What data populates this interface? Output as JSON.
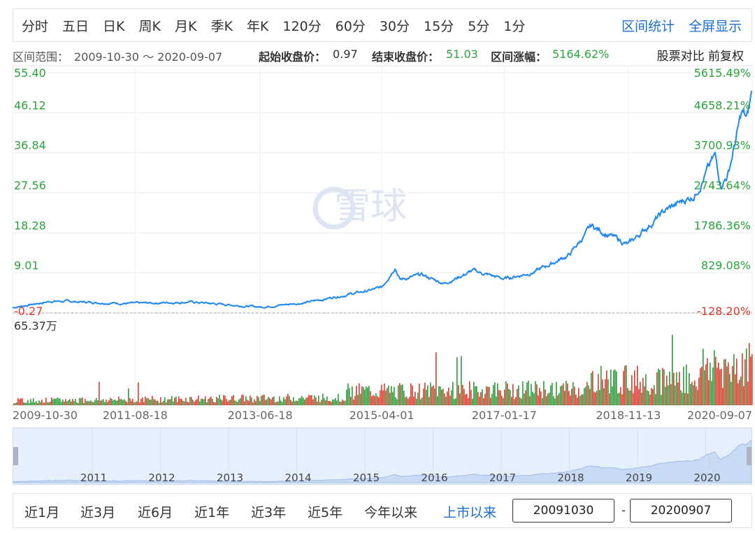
{
  "periods": [
    "分时",
    "五日",
    "日K",
    "周K",
    "月K",
    "季K",
    "年K",
    "120分",
    "60分",
    "30分",
    "15分",
    "5分",
    "1分"
  ],
  "top_actions": [
    "区间统计",
    "全屏显示"
  ],
  "info": {
    "range_label": "区间范围：",
    "range_value": "2009-10-30 ～ 2020-09-07",
    "start_label": "起始收盘价：",
    "start_value": "0.97",
    "end_label": "结束收盘价：",
    "end_value": "51.03",
    "change_label": "区间涨幅：",
    "change_value": "5164.62%",
    "right_links": "股票对比 前复权"
  },
  "watermark": "雪球",
  "chart_data": {
    "type": "line",
    "price_axis": [
      "55.40",
      "46.12",
      "36.84",
      "27.56",
      "18.28",
      "9.01",
      "-0.27"
    ],
    "pct_axis": [
      "5615.49%",
      "4658.21%",
      "3700.93%",
      "2743.64%",
      "1786.36%",
      "829.08%",
      "-128.20%"
    ],
    "ylim": [
      -0.27,
      55.4
    ],
    "volume_label": "65.37万",
    "x_ticks": [
      "2009-10-30",
      "2011-08-18",
      "2013-06-18",
      "2015-04-01",
      "2017-01-17",
      "2018-11-13",
      "2020-09-07"
    ],
    "series": [
      {
        "x": [
          "2009-10-30",
          "2010-06-01",
          "2011-01-01",
          "2011-08-18",
          "2012-06-01",
          "2013-06-18",
          "2014-03-01",
          "2014-09-01",
          "2015-01-01",
          "2015-04-01",
          "2015-06-12",
          "2015-07-08",
          "2015-11-01",
          "2016-03-01",
          "2016-08-01",
          "2017-01-17",
          "2017-07-01",
          "2018-01-01",
          "2018-05-01",
          "2018-11-13",
          "2019-02-01",
          "2019-06-01",
          "2019-11-01",
          "2020-02-20",
          "2020-03-23",
          "2020-05-01",
          "2020-07-13",
          "2020-08-10",
          "2020-09-07"
        ],
        "y": [
          0.97,
          2.5,
          2.2,
          1.9,
          2.3,
          1.1,
          2.2,
          3.8,
          4.7,
          5.6,
          10.5,
          7.5,
          8.5,
          6.6,
          9.5,
          7.6,
          9.3,
          13.2,
          19.8,
          15.5,
          18.8,
          23.5,
          27.0,
          36.0,
          29.5,
          32.0,
          46.0,
          44.5,
          51.03
        ]
      }
    ],
    "volume_ticks_years": [
      "2011",
      "2012",
      "2013",
      "2014",
      "2015",
      "2016",
      "2017",
      "2018",
      "2019",
      "2020"
    ]
  },
  "bottom": {
    "ranges": [
      "近1月",
      "近3月",
      "近6月",
      "近1年",
      "近3年",
      "近5年",
      "今年以来",
      "上市以来"
    ],
    "active_range": "上市以来",
    "start_date": "20091030",
    "end_date": "20200907"
  },
  "colors": {
    "line": "#1e88f0",
    "up": "#e03a2b",
    "down": "#2a9d3a",
    "accent": "#1a6fd0"
  }
}
